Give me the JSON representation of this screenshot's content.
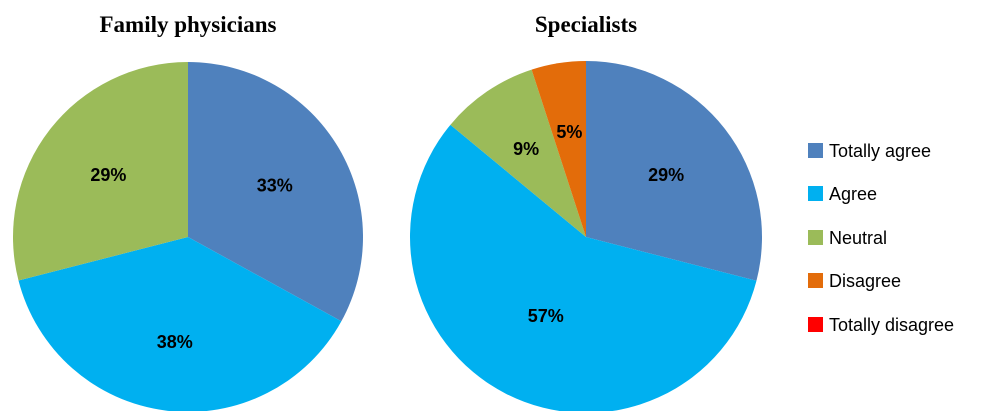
{
  "chart_data": [
    {
      "type": "pie",
      "title": "Family physicians",
      "categories": [
        "Totally agree",
        "Agree",
        "Neutral",
        "Disagree",
        "Totally disagree"
      ],
      "values": [
        33,
        38,
        29,
        0,
        0
      ],
      "labels": [
        "33%",
        "38%",
        "29%",
        "",
        ""
      ],
      "colors": [
        "#4F81BD",
        "#00B0F0",
        "#9BBB59",
        "#E36C0A",
        "#FF0000"
      ]
    },
    {
      "type": "pie",
      "title": "Specialists",
      "categories": [
        "Totally agree",
        "Agree",
        "Neutral",
        "Disagree",
        "Totally disagree"
      ],
      "values": [
        29,
        57,
        9,
        5,
        0
      ],
      "labels": [
        "29%",
        "57%",
        "9%",
        "5%",
        ""
      ],
      "colors": [
        "#4F81BD",
        "#00B0F0",
        "#9BBB59",
        "#E36C0A",
        "#FF0000"
      ]
    }
  ],
  "legend": {
    "placement": "right",
    "items": [
      {
        "label": "Totally agree",
        "color": "#4F81BD"
      },
      {
        "label": "Agree",
        "color": "#00B0F0"
      },
      {
        "label": "Neutral",
        "color": "#9BBB59"
      },
      {
        "label": "Disagree",
        "color": "#E36C0A"
      },
      {
        "label": "Totally disagree",
        "color": "#FF0000"
      }
    ]
  }
}
